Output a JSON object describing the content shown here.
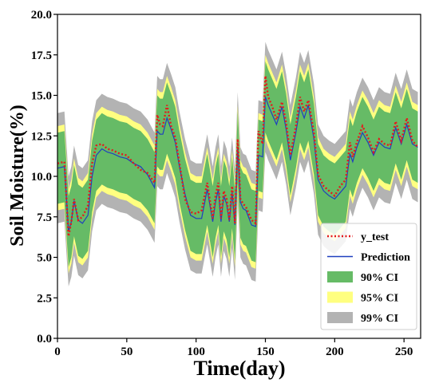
{
  "chart_data": {
    "type": "line",
    "title": "",
    "xlabel": "Time(day)",
    "ylabel": "Soil Moisture(%)",
    "xlim": [
      0,
      262
    ],
    "ylim": [
      0.0,
      20.0
    ],
    "xticks": [
      0,
      50,
      100,
      150,
      200,
      250
    ],
    "xtick_labels": [
      "0",
      "50",
      "100",
      "150",
      "200",
      "250"
    ],
    "yticks": [
      0.0,
      2.5,
      5.0,
      7.5,
      10.0,
      12.5,
      15.0,
      17.5,
      20.0
    ],
    "ytick_labels": [
      "0.0",
      "2.5",
      "5.0",
      "7.5",
      "10.0",
      "12.5",
      "15.0",
      "17.5",
      "20.0"
    ],
    "grid": false,
    "legend_position": "lower-right",
    "x": [
      0,
      5,
      8,
      10,
      12,
      15,
      18,
      22,
      25,
      28,
      32,
      36,
      40,
      45,
      50,
      55,
      60,
      65,
      70,
      72,
      74,
      76,
      79,
      82,
      85,
      88,
      92,
      96,
      100,
      104,
      108,
      112,
      114,
      116,
      118,
      120,
      122,
      124,
      126,
      128,
      130,
      132,
      134,
      136,
      140,
      143,
      145,
      148,
      150,
      152,
      155,
      158,
      162,
      165,
      168,
      172,
      175,
      178,
      181,
      185,
      188,
      192,
      196,
      200,
      204,
      208,
      211,
      213,
      216,
      220,
      224,
      228,
      232,
      236,
      240,
      244,
      248,
      252,
      256,
      260
    ],
    "series": [
      {
        "name": "y_test",
        "style": "dotted",
        "color": "#e41a1c",
        "values": [
          10.8,
          10.9,
          6.3,
          7.2,
          8.6,
          7.3,
          7.5,
          8.2,
          10.8,
          11.9,
          12.0,
          11.7,
          11.6,
          11.4,
          11.3,
          10.8,
          10.4,
          10.2,
          9.6,
          13.8,
          13.2,
          13.1,
          14.4,
          13.1,
          12.4,
          10.8,
          8.6,
          7.8,
          7.7,
          7.9,
          9.6,
          7.4,
          8.8,
          9.6,
          7.4,
          9.1,
          8.6,
          7.3,
          9.4,
          7.1,
          12.3,
          8.6,
          8.3,
          8.1,
          7.3,
          7.1,
          12.8,
          12.0,
          16.2,
          14.9,
          14.3,
          13.5,
          14.6,
          13.3,
          11.3,
          13.1,
          14.9,
          14.0,
          14.7,
          12.7,
          10.1,
          9.4,
          9.1,
          8.8,
          9.4,
          9.8,
          12.1,
          11.2,
          12.1,
          13.1,
          12.4,
          11.5,
          12.3,
          12.0,
          11.9,
          13.4,
          12.2,
          13.6,
          12.2,
          11.8
        ]
      },
      {
        "name": "Prediction",
        "style": "solid",
        "color": "#1f3fbf",
        "values": [
          10.5,
          10.6,
          6.6,
          7.2,
          8.5,
          7.3,
          7.1,
          7.6,
          10.0,
          11.3,
          11.7,
          11.5,
          11.4,
          11.2,
          11.1,
          10.8,
          10.6,
          10.1,
          9.3,
          12.8,
          12.6,
          12.6,
          13.6,
          12.9,
          12.1,
          10.6,
          8.9,
          7.6,
          7.4,
          7.4,
          9.2,
          7.2,
          8.4,
          9.2,
          7.2,
          8.8,
          8.3,
          7.2,
          9.0,
          7.0,
          11.8,
          8.4,
          8.0,
          7.9,
          7.0,
          6.9,
          11.3,
          11.2,
          14.9,
          14.4,
          13.8,
          13.2,
          14.3,
          12.9,
          11.0,
          12.7,
          14.3,
          13.6,
          14.4,
          12.3,
          9.8,
          9.1,
          8.8,
          8.6,
          9.0,
          9.4,
          11.4,
          10.9,
          11.8,
          12.7,
          12.1,
          11.3,
          12.1,
          11.8,
          11.7,
          13.0,
          12.0,
          13.2,
          12.0,
          11.8
        ]
      }
    ],
    "confidence_bands": [
      {
        "name": "99% CI",
        "color": "#b3b3b3",
        "half_width": 3.4
      },
      {
        "name": "95% CI",
        "color": "#ffff80",
        "half_width": 2.6
      },
      {
        "name": "90% CI",
        "color": "#66bb66",
        "half_width": 2.2
      }
    ]
  }
}
